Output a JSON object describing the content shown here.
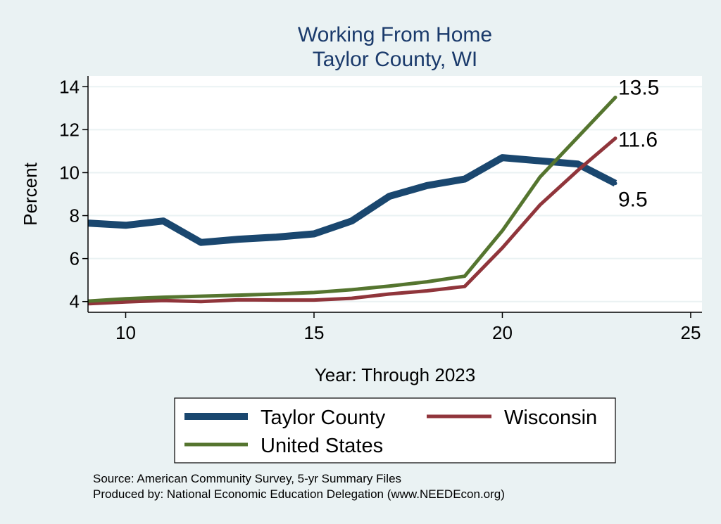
{
  "chart_data": {
    "type": "line",
    "title": [
      "Working From Home",
      "Taylor County, WI"
    ],
    "xlabel": "Year: Through 2023",
    "ylabel": "Percent",
    "xlim": [
      9,
      25.3
    ],
    "ylim": [
      3.5,
      14.5
    ],
    "xticks": [
      10,
      15,
      20,
      25
    ],
    "yticks": [
      4,
      6,
      8,
      10,
      12,
      14
    ],
    "grid": true,
    "legend_position": "bottom",
    "series": [
      {
        "name": "Taylor County",
        "color": "#1a476f",
        "width": 10,
        "x": [
          9,
          10,
          11,
          12,
          13,
          14,
          15,
          16,
          17,
          18,
          19,
          20,
          21,
          22,
          23
        ],
        "values": [
          7.65,
          7.55,
          7.75,
          6.75,
          6.9,
          7.0,
          7.15,
          7.75,
          8.9,
          9.4,
          9.7,
          10.7,
          10.55,
          10.4,
          9.5
        ],
        "end_label": "9.5"
      },
      {
        "name": "Wisconsin",
        "color": "#90353b",
        "width": 5,
        "x": [
          9,
          10,
          11,
          12,
          13,
          14,
          15,
          16,
          17,
          18,
          19,
          20,
          21,
          22,
          23
        ],
        "values": [
          3.9,
          3.98,
          4.05,
          4.0,
          4.08,
          4.07,
          4.07,
          4.15,
          4.35,
          4.5,
          4.7,
          6.5,
          8.5,
          10.1,
          11.6
        ],
        "end_label": "11.6"
      },
      {
        "name": "United States",
        "color": "#55752f",
        "width": 5,
        "x": [
          9,
          10,
          11,
          12,
          13,
          14,
          15,
          16,
          17,
          18,
          19,
          20,
          21,
          22,
          23
        ],
        "values": [
          4.02,
          4.13,
          4.2,
          4.25,
          4.3,
          4.35,
          4.42,
          4.55,
          4.72,
          4.92,
          5.18,
          7.3,
          9.8,
          11.65,
          13.5
        ],
        "end_label": "13.5"
      }
    ]
  },
  "source": {
    "line1": "Source: American Community Survey, 5-yr Summary Files",
    "line2": "Produced by: National Economic Education Delegation (www.NEEDEcon.org)"
  },
  "colors": {
    "background": "#eaf2f3",
    "plot_background": "#ffffff",
    "grid": "#eaf2f3",
    "title": "#1a3a6b"
  }
}
